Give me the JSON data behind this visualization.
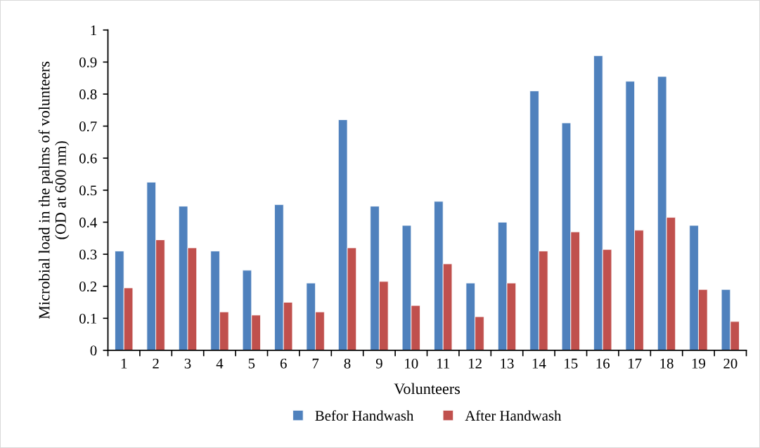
{
  "chart_data": {
    "type": "bar",
    "xlabel": "Volunteers",
    "ylabel": "Microbial load in the palms of volunteers\n(OD at 600 nm)",
    "categories": [
      "1",
      "2",
      "3",
      "4",
      "5",
      "6",
      "7",
      "8",
      "9",
      "10",
      "11",
      "12",
      "13",
      "14",
      "15",
      "16",
      "17",
      "18",
      "19",
      "20"
    ],
    "series": [
      {
        "name": "Befor Handwash",
        "color": "#4f81bd",
        "values": [
          0.31,
          0.525,
          0.45,
          0.31,
          0.25,
          0.455,
          0.21,
          0.72,
          0.45,
          0.39,
          0.465,
          0.21,
          0.4,
          0.81,
          0.71,
          0.92,
          0.84,
          0.855,
          0.39,
          0.19
        ]
      },
      {
        "name": "After Handwash",
        "color": "#c0504d",
        "values": [
          0.195,
          0.345,
          0.32,
          0.12,
          0.11,
          0.15,
          0.12,
          0.32,
          0.215,
          0.14,
          0.27,
          0.105,
          0.21,
          0.31,
          0.37,
          0.315,
          0.375,
          0.415,
          0.19,
          0.09
        ]
      }
    ],
    "ylim": [
      0,
      1
    ],
    "yticks": [
      0,
      0.1,
      0.2,
      0.3,
      0.4,
      0.5,
      0.6,
      0.7,
      0.8,
      0.9,
      1
    ],
    "grid": false,
    "legend": "bottom"
  }
}
